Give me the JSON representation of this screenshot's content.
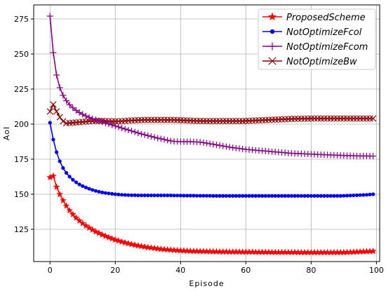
{
  "chart_data": {
    "type": "line",
    "title": "",
    "xlabel": "Episode",
    "ylabel": "AoI",
    "xlim": [
      -5,
      101
    ],
    "ylim": [
      102,
      285
    ],
    "xticks": [
      0,
      20,
      40,
      60,
      80,
      100
    ],
    "yticks": [
      125,
      150,
      175,
      200,
      225,
      250,
      275
    ],
    "grid": true,
    "legend_position": "top-right",
    "x": [
      0,
      1,
      2,
      3,
      4,
      5,
      6,
      7,
      8,
      9,
      10,
      11,
      12,
      13,
      14,
      15,
      16,
      17,
      18,
      19,
      20,
      21,
      22,
      23,
      24,
      25,
      26,
      27,
      28,
      29,
      30,
      31,
      32,
      33,
      34,
      35,
      36,
      37,
      38,
      39,
      40,
      41,
      42,
      43,
      44,
      45,
      46,
      47,
      48,
      49,
      50,
      51,
      52,
      53,
      54,
      55,
      56,
      57,
      58,
      59,
      60,
      61,
      62,
      63,
      64,
      65,
      66,
      67,
      68,
      69,
      70,
      71,
      72,
      73,
      74,
      75,
      76,
      77,
      78,
      79,
      80,
      81,
      82,
      83,
      84,
      85,
      86,
      87,
      88,
      89,
      90,
      91,
      92,
      93,
      94,
      95,
      96,
      97,
      98,
      99
    ],
    "series": [
      {
        "name": "ProposedScheme",
        "color": "#ff0000",
        "marker": "star",
        "values": [
          162.0,
          163.0,
          155.2,
          149.9,
          145.5,
          141.7,
          138.4,
          135.6,
          133.2,
          131.1,
          129.2,
          127.5,
          126.0,
          124.6,
          123.3,
          122.2,
          121.1,
          120.1,
          119.2,
          118.3,
          117.5,
          116.8,
          116.1,
          115.5,
          114.9,
          114.3,
          113.8,
          113.3,
          112.9,
          112.5,
          112.1,
          111.8,
          111.5,
          111.2,
          110.9,
          110.7,
          110.5,
          110.3,
          110.1,
          110.0,
          109.8,
          109.7,
          109.6,
          109.5,
          109.4,
          109.4,
          109.3,
          109.3,
          109.2,
          109.2,
          109.1,
          109.1,
          109.0,
          109.0,
          109.0,
          108.9,
          108.9,
          108.9,
          108.9,
          108.8,
          108.8,
          108.8,
          108.8,
          108.7,
          108.7,
          108.7,
          108.7,
          108.7,
          108.6,
          108.6,
          108.6,
          108.6,
          108.6,
          108.6,
          108.6,
          108.6,
          108.5,
          108.5,
          108.5,
          108.5,
          108.5,
          108.5,
          108.5,
          108.5,
          108.5,
          108.5,
          108.5,
          108.5,
          108.5,
          108.5,
          108.5,
          108.6,
          108.7,
          108.8,
          108.9,
          109.0,
          109.1,
          109.2,
          109.3,
          109.4
        ]
      },
      {
        "name": "NotOptimizeFcol",
        "color": "#0000ff",
        "marker": "circle",
        "values": [
          201.0,
          189.0,
          180.0,
          173.5,
          168.7,
          165.2,
          162.5,
          160.3,
          158.5,
          157.0,
          155.8,
          154.8,
          153.9,
          153.1,
          152.4,
          151.8,
          151.3,
          150.9,
          150.6,
          150.3,
          150.0,
          149.8,
          149.6,
          149.5,
          149.4,
          149.3,
          149.3,
          149.2,
          149.2,
          149.2,
          149.2,
          149.2,
          149.2,
          149.2,
          149.2,
          149.2,
          149.2,
          149.2,
          149.1,
          149.1,
          149.1,
          149.0,
          149.0,
          149.0,
          149.0,
          148.9,
          148.9,
          148.9,
          148.9,
          148.9,
          148.8,
          148.8,
          148.8,
          148.8,
          148.8,
          148.8,
          148.8,
          148.8,
          148.8,
          148.8,
          148.8,
          148.8,
          148.8,
          148.8,
          148.8,
          148.8,
          148.8,
          148.8,
          148.8,
          148.8,
          148.8,
          148.8,
          148.8,
          148.8,
          148.8,
          148.8,
          148.8,
          148.8,
          148.8,
          148.8,
          148.8,
          148.8,
          148.8,
          148.8,
          148.8,
          148.8,
          148.8,
          148.8,
          148.8,
          148.8,
          148.9,
          149.0,
          149.1,
          149.2,
          149.3,
          149.4,
          149.5,
          149.6,
          149.8,
          150.0
        ]
      },
      {
        "name": "NotOptimizeFcom",
        "color": "#8b008b",
        "marker": "plus",
        "values": [
          277.0,
          251.0,
          235.0,
          226.0,
          220.5,
          216.7,
          213.8,
          211.6,
          209.8,
          208.3,
          207.0,
          205.8,
          204.8,
          203.9,
          203.1,
          202.3,
          201.6,
          200.8,
          200.1,
          199.4,
          198.7,
          198.0,
          197.2,
          196.5,
          195.8,
          195.1,
          194.4,
          193.7,
          193.0,
          192.4,
          191.8,
          191.2,
          190.6,
          190.0,
          189.5,
          189.0,
          188.5,
          188.0,
          187.7,
          187.6,
          187.5,
          187.5,
          187.5,
          187.5,
          187.4,
          187.3,
          187.1,
          186.8,
          186.4,
          186.0,
          185.6,
          185.2,
          184.8,
          184.4,
          184.0,
          183.6,
          183.2,
          182.9,
          182.6,
          182.3,
          182.0,
          181.8,
          181.6,
          181.4,
          181.2,
          181.0,
          180.8,
          180.6,
          180.4,
          180.2,
          180.0,
          179.8,
          179.6,
          179.4,
          179.2,
          179.1,
          179.0,
          178.9,
          178.8,
          178.7,
          178.6,
          178.5,
          178.4,
          178.3,
          178.2,
          178.1,
          178.0,
          177.9,
          177.8,
          177.7,
          177.6,
          177.5,
          177.5,
          177.4,
          177.4,
          177.3,
          177.3,
          177.3,
          177.2,
          177.2
        ]
      },
      {
        "name": "NotOptimizeBw",
        "color": "#8b0000",
        "marker": "x",
        "values": [
          209.0,
          214.0,
          209.0,
          205.0,
          202.0,
          200.6,
          200.8,
          201.0,
          201.2,
          201.4,
          201.6,
          201.8,
          202.0,
          202.1,
          202.2,
          202.3,
          202.3,
          202.2,
          202.1,
          202.0,
          202.0,
          202.0,
          202.1,
          202.3,
          202.5,
          202.6,
          202.7,
          202.8,
          202.9,
          203.0,
          203.0,
          203.0,
          203.0,
          203.0,
          203.0,
          203.0,
          203.0,
          203.0,
          203.0,
          202.9,
          202.8,
          202.7,
          202.6,
          202.5,
          202.4,
          202.3,
          202.3,
          202.2,
          202.2,
          202.2,
          202.2,
          202.2,
          202.2,
          202.2,
          202.2,
          202.2,
          202.2,
          202.2,
          202.2,
          202.2,
          202.3,
          202.4,
          202.5,
          202.6,
          202.7,
          202.8,
          202.9,
          203.0,
          203.1,
          203.2,
          203.3,
          203.4,
          203.5,
          203.6,
          203.7,
          203.8,
          203.8,
          203.9,
          203.9,
          203.9,
          204.0,
          204.0,
          204.0,
          204.0,
          204.0,
          204.0,
          204.0,
          204.0,
          204.0,
          204.0,
          204.0,
          204.0,
          204.0,
          204.0,
          204.0,
          204.0,
          204.0,
          204.0,
          204.0,
          204.0
        ]
      }
    ]
  }
}
